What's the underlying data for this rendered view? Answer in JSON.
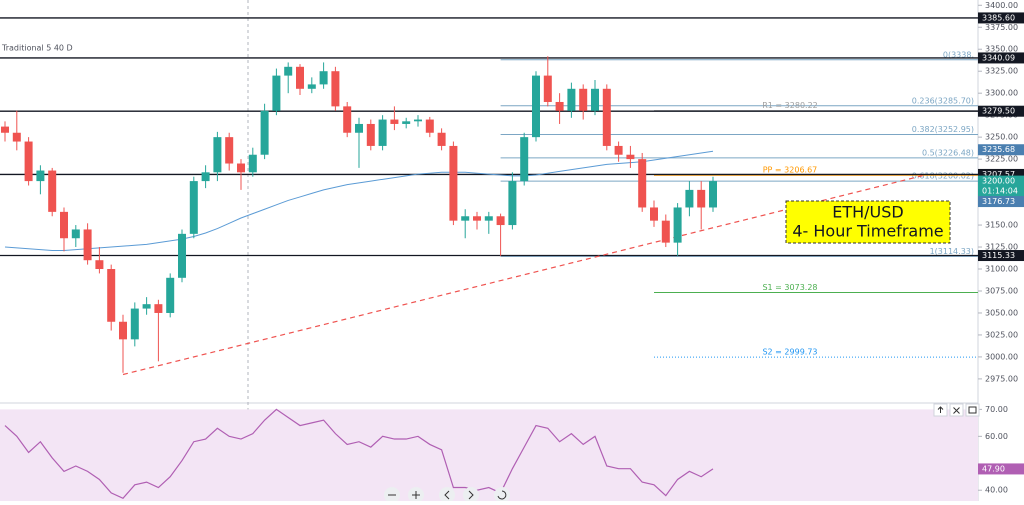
{
  "chart_data": {
    "type": "candlestick",
    "indicator_label": "Traditional 5 40 D",
    "annotation": {
      "lines": [
        "ETH/USD",
        "4- Hour Timeframe"
      ],
      "background": "#ffff00"
    },
    "up_color": "#26a69a",
    "down_color": "#ef5350",
    "open": [
      3262,
      3255,
      3245,
      3200,
      3212,
      3165,
      3135,
      3145,
      3110,
      3100,
      3040,
      3020,
      3055,
      3060,
      3050,
      3090,
      3140,
      3200,
      3210,
      3250,
      3220,
      3210,
      3230,
      3280,
      3320,
      3330,
      3305,
      3310,
      3325,
      3285,
      3255,
      3265,
      3240,
      3270,
      3265,
      3268,
      3270,
      3255,
      3240,
      3155,
      3160,
      3155,
      3160,
      3150,
      3200,
      3250,
      3320,
      3290,
      3280,
      3305,
      3280,
      3305,
      3240,
      3230,
      3225,
      3170,
      3155,
      3130,
      3170,
      3190,
      3170
    ],
    "high": [
      3268,
      3280,
      3250,
      3218,
      3215,
      3170,
      3150,
      3152,
      3125,
      3105,
      3048,
      3062,
      3068,
      3065,
      3095,
      3145,
      3205,
      3218,
      3256,
      3255,
      3225,
      3238,
      3288,
      3328,
      3335,
      3333,
      3318,
      3335,
      3330,
      3290,
      3272,
      3270,
      3275,
      3285,
      3272,
      3275,
      3273,
      3260,
      3245,
      3168,
      3165,
      3165,
      3163,
      3210,
      3255,
      3325,
      3342,
      3300,
      3312,
      3310,
      3315,
      3310,
      3245,
      3240,
      3232,
      3178,
      3162,
      3175,
      3200,
      3200,
      3205
    ],
    "low": [
      3245,
      3235,
      3195,
      3185,
      3160,
      3120,
      3125,
      3105,
      3095,
      3030,
      2982,
      3012,
      3048,
      2995,
      3045,
      3085,
      3135,
      3192,
      3200,
      3212,
      3190,
      3205,
      3225,
      3275,
      3300,
      3298,
      3300,
      3305,
      3280,
      3250,
      3215,
      3235,
      3235,
      3258,
      3260,
      3262,
      3250,
      3235,
      3150,
      3135,
      3145,
      3140,
      3115,
      3145,
      3195,
      3245,
      3285,
      3265,
      3272,
      3270,
      3275,
      3235,
      3222,
      3215,
      3165,
      3148,
      3125,
      3115,
      3160,
      3145,
      3165
    ],
    "close": [
      3255,
      3245,
      3200,
      3212,
      3165,
      3135,
      3145,
      3110,
      3100,
      3040,
      3020,
      3055,
      3060,
      3050,
      3090,
      3140,
      3200,
      3210,
      3250,
      3220,
      3210,
      3230,
      3280,
      3320,
      3330,
      3305,
      3310,
      3325,
      3285,
      3255,
      3265,
      3240,
      3270,
      3265,
      3268,
      3270,
      3255,
      3240,
      3155,
      3160,
      3155,
      3160,
      3150,
      3200,
      3250,
      3320,
      3290,
      3280,
      3305,
      3280,
      3305,
      3240,
      3230,
      3225,
      3170,
      3155,
      3130,
      3170,
      3190,
      3170,
      3200
    ],
    "moving_average": {
      "color": "#5b9bd5",
      "values": [
        3125,
        3124,
        3123,
        3122,
        3121,
        3121,
        3122,
        3123,
        3124,
        3125,
        3126,
        3127,
        3128,
        3130,
        3132,
        3134,
        3137,
        3141,
        3146,
        3152,
        3158,
        3163,
        3168,
        3173,
        3178,
        3182,
        3186,
        3190,
        3193,
        3196,
        3198,
        3200,
        3202,
        3204,
        3206,
        3208,
        3209,
        3210,
        3210,
        3210,
        3209,
        3208,
        3207,
        3206,
        3206,
        3207,
        3209,
        3211,
        3213,
        3215,
        3217,
        3219,
        3220,
        3221,
        3222,
        3224,
        3226,
        3228,
        3230,
        3232,
        3234
      ]
    },
    "trendline": {
      "color": "#ef5350",
      "start": [
        10,
        2980
      ],
      "end": [
        78,
        3207
      ]
    },
    "ylim": [
      2951,
      3406
    ],
    "yticks": [
      {
        "value": 2975,
        "label": "2975.00"
      },
      {
        "value": 3000,
        "label": "3000.00"
      },
      {
        "value": 3025,
        "label": "3025.00"
      },
      {
        "value": 3050,
        "label": "3050.00"
      },
      {
        "value": 3075,
        "label": "3075.00"
      },
      {
        "value": 3100,
        "label": "3100.00"
      },
      {
        "value": 3125,
        "label": "3125.00"
      },
      {
        "value": 3150,
        "label": "3150.00"
      },
      {
        "value": 3175,
        "label": "3175.00"
      },
      {
        "value": 3200,
        "label": "3200.00"
      },
      {
        "value": 3225,
        "label": "3225.00"
      },
      {
        "value": 3250,
        "label": "3250.00"
      },
      {
        "value": 3275,
        "label": "3275.00"
      },
      {
        "value": 3300,
        "label": "3300.00"
      },
      {
        "value": 3325,
        "label": "3325.00"
      },
      {
        "value": 3350,
        "label": "3350.00"
      },
      {
        "value": 3375,
        "label": "3375.00"
      },
      {
        "value": 3400,
        "label": "3400.00"
      }
    ],
    "fib_start": 42,
    "fib_levels": [
      {
        "value": 3338,
        "label": "0(3338."
      },
      {
        "value": 3285.7,
        "label": "0.236(3285.70)"
      },
      {
        "value": 3252.95,
        "label": "0.382(3252.95)"
      },
      {
        "value": 3226.48,
        "label": "0.5(3226.48)"
      },
      {
        "value": 3200.02,
        "label": "0.618(3200.02)"
      },
      {
        "value": 3114.33,
        "label": "1(3114.33)"
      }
    ],
    "fib_color": "#7ca6c4",
    "pivot_start": 55,
    "pivots": [
      {
        "value": 3280.22,
        "label": "R1 = 3280.22",
        "color": "#9e9e9e",
        "dash": false
      },
      {
        "value": 3206.67,
        "label": "PP = 3206.67",
        "color": "#ff9800",
        "dash": false
      },
      {
        "value": 3073.28,
        "label": "S1 = 3073.28",
        "color": "#4caf50",
        "dash": false
      },
      {
        "value": 2999.73,
        "label": "S2 = 2999.73",
        "color": "#2196f3",
        "dash": true
      }
    ],
    "price_labels": [
      {
        "value": 3385.6,
        "label": "3385.60",
        "color": "#131722",
        "line": true
      },
      {
        "value": 3340.09,
        "label": "3340.09",
        "color": "#131722",
        "line": true
      },
      {
        "value": 3279.5,
        "label": "3279.50",
        "color": "#131722",
        "line": true
      },
      {
        "value": 3235.68,
        "label": "3235.68",
        "color": "#4a7fb0",
        "line": false
      },
      {
        "value": 3207.57,
        "label": "3207.57",
        "color": "#131722",
        "line": true
      },
      {
        "value": 3200,
        "label": "3200.00",
        "color": "#26a69a",
        "line": false,
        "sub": "01:14:04"
      },
      {
        "value": 3176.73,
        "label": "3176.73",
        "color": "#4a7fb0",
        "line": false
      },
      {
        "value": 3115.33,
        "label": "3115.33",
        "color": "#131722",
        "line": true
      }
    ],
    "rsi": {
      "color": "#b05fb3",
      "ylim": [
        36,
        72
      ],
      "yticks": [
        {
          "value": 40,
          "label": "40.00"
        },
        {
          "value": 60,
          "label": "60.00"
        },
        {
          "value": 70,
          "label": "70.00"
        }
      ],
      "band": [
        30,
        70
      ],
      "last_label": {
        "value": 47.9,
        "label": "47.90"
      },
      "values": [
        64,
        60,
        54,
        58,
        52,
        47,
        49,
        47,
        44,
        39,
        37,
        42,
        43,
        41,
        45,
        51,
        58,
        59,
        63,
        60,
        59,
        61,
        66,
        70,
        67,
        64,
        65,
        66,
        61,
        57,
        58,
        56,
        60,
        59,
        59,
        60,
        57,
        55,
        41,
        41,
        40,
        41,
        39,
        48,
        56,
        64,
        63,
        58,
        61,
        57,
        60,
        49,
        48,
        48,
        43,
        42,
        38,
        44,
        47,
        45,
        47.9
      ]
    }
  }
}
